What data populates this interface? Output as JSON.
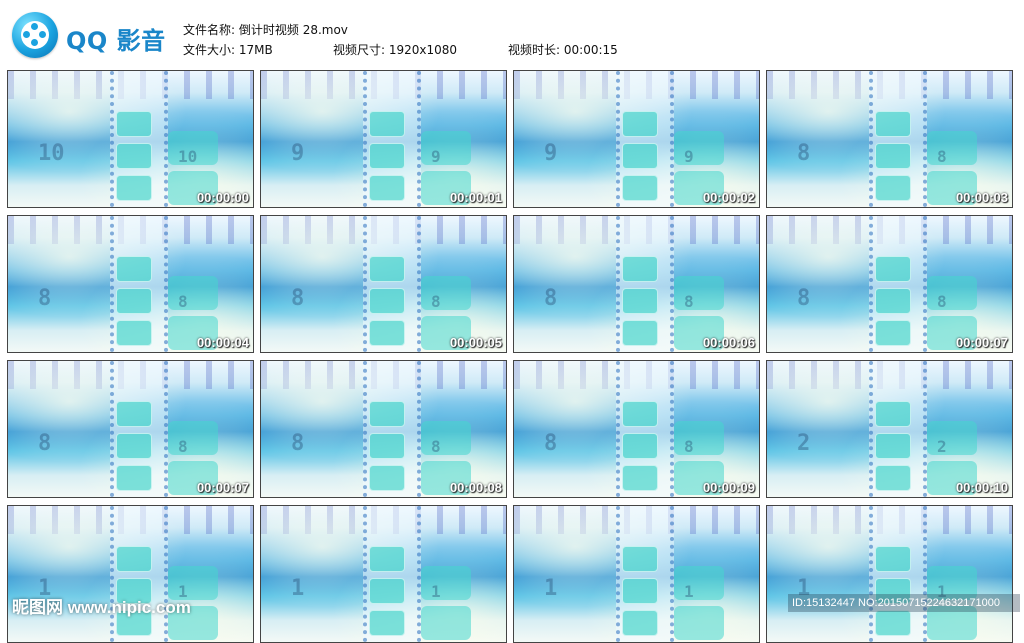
{
  "app": {
    "logo_text": "QQ 影音"
  },
  "info": {
    "file_name_label": "文件名称:",
    "file_name": "倒计时视频 28.mov",
    "file_size_label": "文件大小:",
    "file_size": "17MB",
    "dimensions_label": "视频尺寸:",
    "dimensions": "1920x1080",
    "duration_label": "视频时长:",
    "duration": "00:00:15"
  },
  "thumbnails": [
    {
      "time": "00:00:00",
      "digit": "10"
    },
    {
      "time": "00:00:01",
      "digit": "9"
    },
    {
      "time": "00:00:02",
      "digit": "9"
    },
    {
      "time": "00:00:03",
      "digit": "8"
    },
    {
      "time": "00:00:04",
      "digit": "8"
    },
    {
      "time": "00:00:05",
      "digit": "8"
    },
    {
      "time": "00:00:06",
      "digit": "8"
    },
    {
      "time": "00:00:07",
      "digit": "8"
    },
    {
      "time": "00:00:07",
      "digit": "8"
    },
    {
      "time": "00:00:08",
      "digit": "8"
    },
    {
      "time": "00:00:09",
      "digit": "8"
    },
    {
      "time": "00:00:10",
      "digit": "2"
    },
    {
      "time": "",
      "digit": "1"
    },
    {
      "time": "",
      "digit": "1"
    },
    {
      "time": "",
      "digit": "1"
    },
    {
      "time": "",
      "digit": "1"
    }
  ],
  "watermark": {
    "left": "昵图网 www.nipic.com",
    "right": "ID:15132447 NO:20150715224632171000"
  }
}
